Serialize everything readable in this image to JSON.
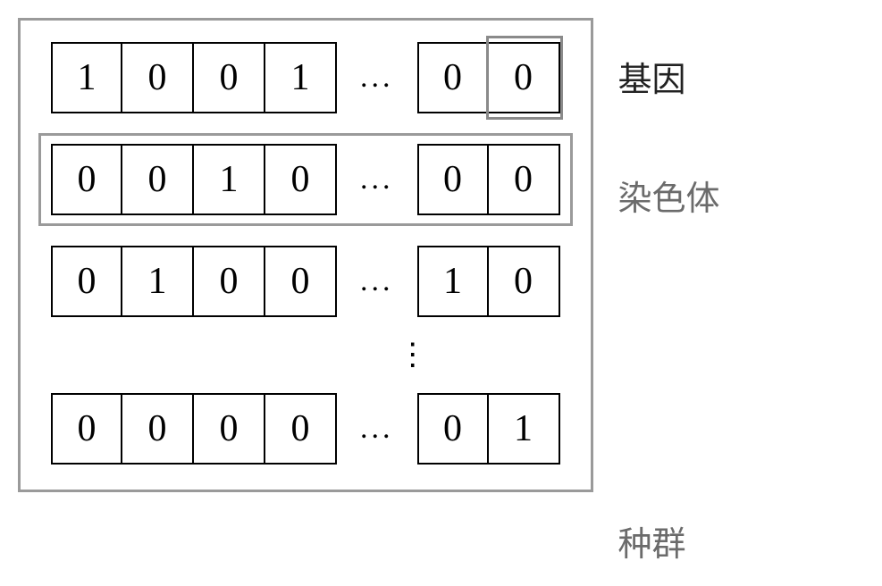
{
  "diagram": {
    "type": "infographic",
    "background_color": "#ffffff",
    "population_border_color": "#9a9a9a",
    "chromosome_highlight_color": "#9a9a9a",
    "gene_highlight_color": "#8a8a8a",
    "cell_border_color": "#000000",
    "cell_text_color": "#000000",
    "cell_fontsize": 42,
    "label_fontsize": 38,
    "label_color": "#6b6b6b",
    "h_ellipsis": "...",
    "v_ellipsis": "⋮",
    "rows": [
      {
        "left": [
          "1",
          "0",
          "0",
          "1"
        ],
        "right": [
          "0",
          "0"
        ],
        "highlight_row": false,
        "highlight_last_cell": true
      },
      {
        "left": [
          "0",
          "0",
          "1",
          "0"
        ],
        "right": [
          "0",
          "0"
        ],
        "highlight_row": true,
        "highlight_last_cell": false
      },
      {
        "left": [
          "0",
          "1",
          "0",
          "0"
        ],
        "right": [
          "1",
          "0"
        ],
        "highlight_row": false,
        "highlight_last_cell": false
      },
      {
        "left": [
          "0",
          "0",
          "0",
          "0"
        ],
        "right": [
          "0",
          "1"
        ],
        "highlight_row": false,
        "highlight_last_cell": false
      }
    ],
    "labels": {
      "gene": "基因",
      "chromosome": "染色体",
      "population": "种群"
    }
  }
}
